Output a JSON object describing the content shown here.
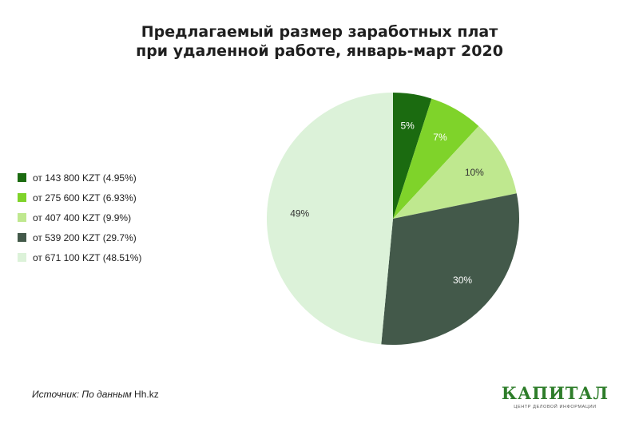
{
  "chart_data": {
    "type": "pie",
    "title_lines": [
      "Предлагаемый размер заработных плат",
      "при удаленной работе, январь-март 2020"
    ],
    "slices": [
      {
        "label": "от 143 800 KZT (4.95%)",
        "value": 4.95,
        "data_label": "5%",
        "color": "#1b6b10",
        "label_color": "#ffffff"
      },
      {
        "label": "от 275 600 KZT (6.93%)",
        "value": 6.93,
        "data_label": "7%",
        "color": "#7fd32a",
        "label_color": "#ffffff"
      },
      {
        "label": "от 407 400 KZT (9.9%)",
        "value": 9.9,
        "data_label": "10%",
        "color": "#bfe88f",
        "label_color": "#333333"
      },
      {
        "label": "от 539 200 KZT (29.7%)",
        "value": 29.7,
        "data_label": "30%",
        "color": "#43594a",
        "label_color": "#ffffff"
      },
      {
        "label": "от 671 100 KZT (48.51%)",
        "value": 48.51,
        "data_label": "49%",
        "color": "#dcf2d9",
        "label_color": "#333333"
      }
    ],
    "legend_position": "left",
    "start_angle": "top, clockwise"
  },
  "source": {
    "label": "Источник:",
    "text": "По данным",
    "site": "Hh.kz"
  },
  "logo": {
    "word": "КАПИТАЛ",
    "subtitle": "ЦЕНТР ДЕЛОВОЙ ИНФОРМАЦИИ",
    "color": "#2e7d2a"
  }
}
